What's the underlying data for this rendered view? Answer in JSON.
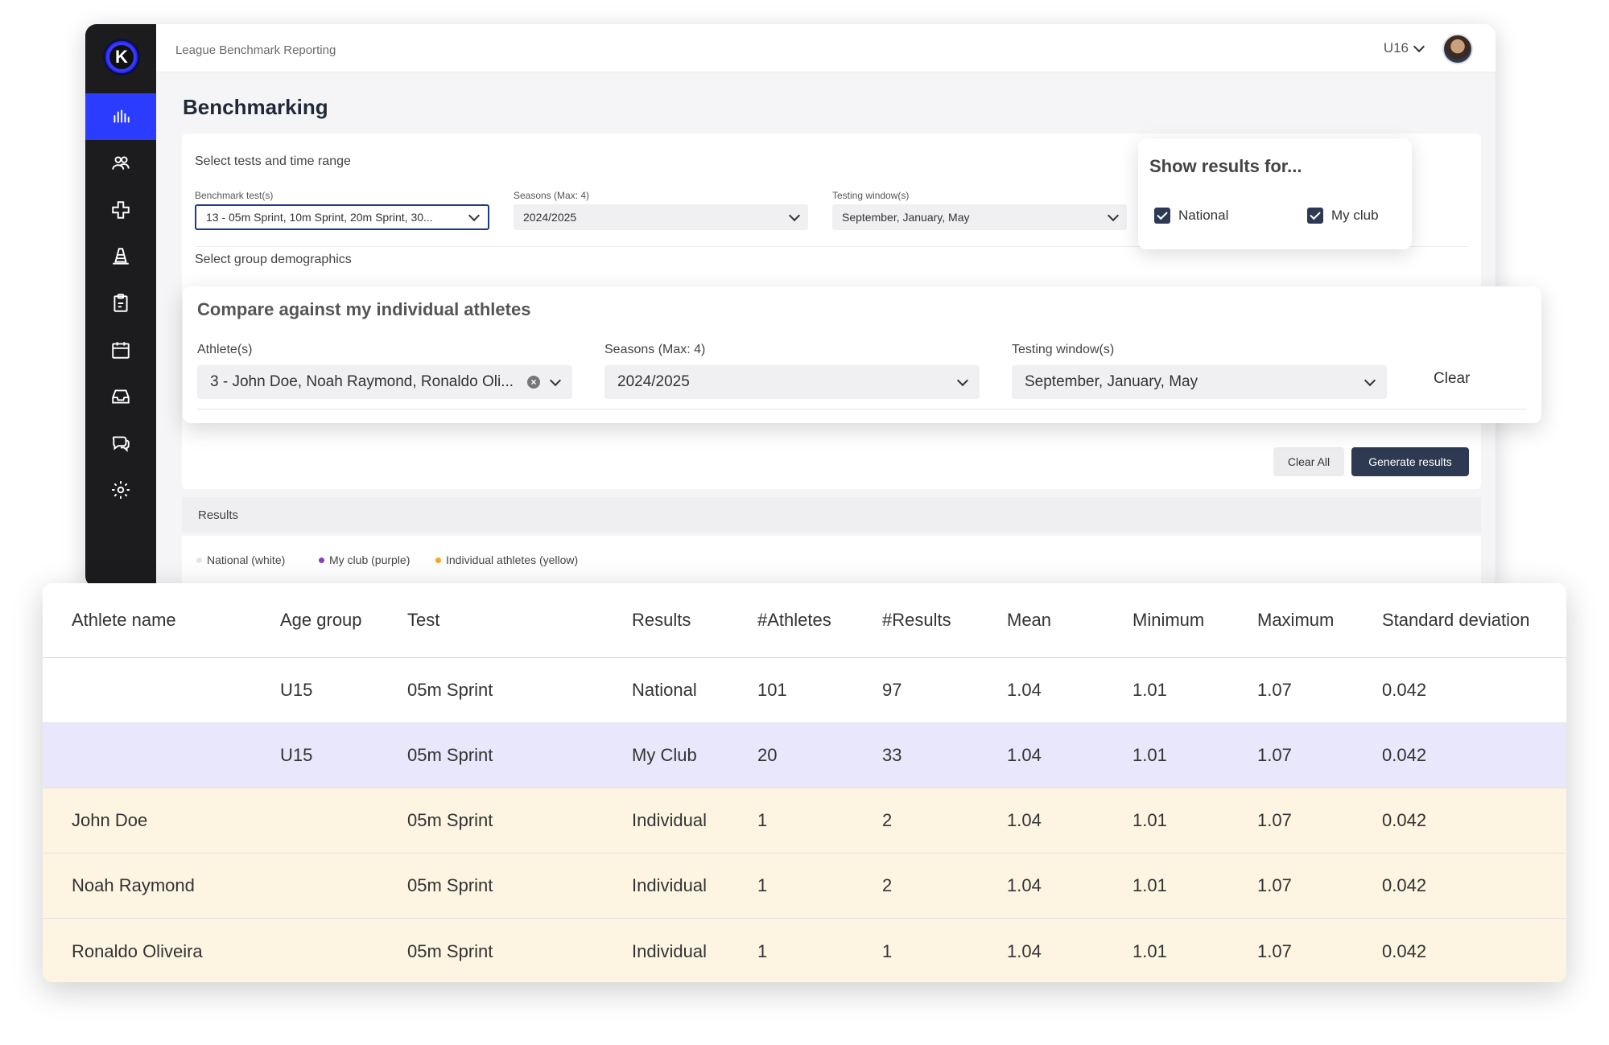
{
  "app": {
    "title": "League Benchmark Reporting",
    "team": "U16",
    "logo_letter": "K"
  },
  "sidebar": {
    "items": [
      {
        "icon": "bar-chart-icon",
        "active": true
      },
      {
        "icon": "users-icon"
      },
      {
        "icon": "medical-cross-icon"
      },
      {
        "icon": "training-cone-icon"
      },
      {
        "icon": "clipboard-icon"
      },
      {
        "icon": "calendar-icon"
      },
      {
        "icon": "inbox-icon"
      },
      {
        "icon": "chat-icon"
      },
      {
        "icon": "gear-icon"
      }
    ]
  },
  "page": {
    "title": "Benchmarking"
  },
  "filters": {
    "section_tests": "Select tests and time range",
    "benchmark_label": "Benchmark test(s)",
    "benchmark_value": "13 - 05m Sprint, 10m Sprint, 20m Sprint, 30...",
    "seasons_label": "Seasons (Max: 4)",
    "seasons_value": "2024/2025",
    "window_label": "Testing window(s)",
    "window_value": "September, January, May",
    "section_demographics": "Select group demographics",
    "clear_all": "Clear All",
    "generate": "Generate results"
  },
  "show_results": {
    "title": "Show results for...",
    "options": [
      {
        "label": "National",
        "checked": true
      },
      {
        "label": "My club",
        "checked": true
      }
    ]
  },
  "compare": {
    "title": "Compare against my individual athletes",
    "athletes_label": "Athlete(s)",
    "athletes_value": "3 - John Doe, Noah Raymond, Ronaldo Oli...",
    "seasons_label": "Seasons (Max: 4)",
    "seasons_value": "2024/2025",
    "window_label": "Testing window(s)",
    "window_value": "September, January, May",
    "clear": "Clear"
  },
  "results": {
    "label": "Results",
    "legend": [
      {
        "label": "National (white)",
        "color": "#e5e5e5"
      },
      {
        "label": "My club (purple)",
        "color": "#8b3fbf"
      },
      {
        "label": "Individual athletes (yellow)",
        "color": "#f5a623"
      }
    ]
  },
  "table": {
    "headers": [
      "Athlete name",
      "Age group",
      "Test",
      "Results",
      "#Athletes",
      "#Results",
      "Mean",
      "Minimum",
      "Maximum",
      "Standard deviation"
    ],
    "rows": [
      {
        "type": "national",
        "cells": [
          "",
          "U15",
          "05m Sprint",
          "National",
          "101",
          "97",
          "1.04",
          "1.01",
          "1.07",
          "0.042"
        ]
      },
      {
        "type": "club",
        "cells": [
          "",
          "U15",
          "05m Sprint",
          "My Club",
          "20",
          "33",
          "1.04",
          "1.01",
          "1.07",
          "0.042"
        ]
      },
      {
        "type": "indiv",
        "cells": [
          "John Doe",
          "",
          "05m Sprint",
          "Individual",
          "1",
          "2",
          "1.04",
          "1.01",
          "1.07",
          "0.042"
        ]
      },
      {
        "type": "indiv",
        "cells": [
          "Noah Raymond",
          "",
          "05m Sprint",
          "Individual",
          "1",
          "2",
          "1.04",
          "1.01",
          "1.07",
          "0.042"
        ]
      },
      {
        "type": "indiv",
        "cells": [
          "Ronaldo Oliveira",
          "",
          "05m Sprint",
          "Individual",
          "1",
          "1",
          "1.04",
          "1.01",
          "1.07",
          "0.042"
        ]
      }
    ]
  }
}
